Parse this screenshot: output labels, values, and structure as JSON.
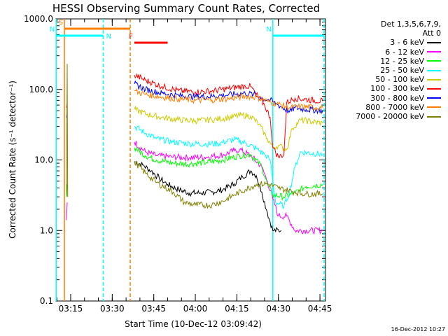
{
  "chart_data": {
    "type": "line",
    "title": "HESSI Observing Summary Count Rates, Corrected",
    "xlabel": "Start Time (10-Dec-12 03:09:42)",
    "ylabel": "Corrected Count Rate (s⁻¹ detector⁻¹)",
    "yscale": "log",
    "ylim": [
      0.1,
      1000.0
    ],
    "y_ticks": [
      "0.1",
      "1.0",
      "10.0",
      "100.0",
      "1000.0"
    ],
    "x_ticks": [
      "03:15",
      "03:30",
      "03:45",
      "04:00",
      "04:15",
      "04:30",
      "04:45"
    ],
    "legend_title": "Det 1,3,5,6,7,9, Att 0",
    "legend_title_lines": [
      "Det 1,3,5,6,7,9,",
      "Att 0"
    ],
    "legend_position": "outside-right",
    "series": [
      {
        "name": "3 - 6 keV",
        "color": "#000000",
        "segments": [
          [
            [
              "03:13:30",
              3.0
            ],
            [
              "03:13:45",
              4.5
            ]
          ],
          [
            [
              "03:38:00",
              9.5
            ],
            [
              "03:41:00",
              8.5
            ],
            [
              "03:44:00",
              7.0
            ],
            [
              "03:47:00",
              5.5
            ],
            [
              "03:50:00",
              4.5
            ],
            [
              "03:54:00",
              3.8
            ],
            [
              "03:58:00",
              3.4
            ],
            [
              "04:02:00",
              3.4
            ],
            [
              "04:06:00",
              3.5
            ],
            [
              "04:10:00",
              3.8
            ],
            [
              "04:14:00",
              4.6
            ],
            [
              "04:17:00",
              5.8
            ],
            [
              "04:20:00",
              7.0
            ],
            [
              "04:22:00",
              6.0
            ],
            [
              "04:24:00",
              3.5
            ],
            [
              "04:26:00",
              1.8
            ],
            [
              "04:28:00",
              1.0
            ],
            [
              "04:31:00",
              1.0
            ]
          ]
        ]
      },
      {
        "name": "6 - 12 keV",
        "color": "#ff00ff",
        "segments": [
          [
            [
              "03:13:30",
              1.4
            ],
            [
              "03:13:45",
              2.5
            ]
          ],
          [
            [
              "03:38:00",
              18.0
            ],
            [
              "03:42:00",
              13.0
            ],
            [
              "03:46:00",
              11.5
            ],
            [
              "03:52:00",
              11.0
            ],
            [
              "03:58:00",
              10.8
            ],
            [
              "04:04:00",
              11.0
            ],
            [
              "04:10:00",
              11.8
            ],
            [
              "04:14:00",
              13.5
            ],
            [
              "04:16:00",
              14.0
            ],
            [
              "04:20:00",
              11.5
            ],
            [
              "04:24:00",
              8.0
            ],
            [
              "04:26:00",
              5.0
            ],
            [
              "04:28:00",
              2.8
            ],
            [
              "04:30:00",
              1.6
            ],
            [
              "04:33:00",
              1.6
            ],
            [
              "04:36:00",
              1.0
            ],
            [
              "04:46:00",
              1.0
            ]
          ]
        ]
      },
      {
        "name": "12 - 25 keV",
        "color": "#00ff00",
        "segments": [
          [
            [
              "03:13:30",
              3.0
            ],
            [
              "03:13:45",
              4.5
            ]
          ],
          [
            [
              "03:38:00",
              15.0
            ],
            [
              "03:42:00",
              11.5
            ],
            [
              "03:46:00",
              10.0
            ],
            [
              "03:52:00",
              9.0
            ],
            [
              "03:58:00",
              8.8
            ],
            [
              "04:04:00",
              9.2
            ],
            [
              "04:10:00",
              10.0
            ],
            [
              "04:16:00",
              11.5
            ],
            [
              "04:20:00",
              12.0
            ],
            [
              "04:24:00",
              8.0
            ],
            [
              "04:26:00",
              4.5
            ],
            [
              "04:28:00",
              3.2
            ],
            [
              "04:32:00",
              3.0
            ],
            [
              "04:36:00",
              3.4
            ],
            [
              "04:40:00",
              4.2
            ],
            [
              "04:46:00",
              4.5
            ]
          ]
        ]
      },
      {
        "name": "25 - 50 keV",
        "color": "#00ffff",
        "segments": [
          [
            [
              "03:13:30",
              12.0
            ],
            [
              "03:13:45",
              12.0
            ]
          ],
          [
            [
              "03:38:00",
              30.0
            ],
            [
              "03:42:00",
              24.0
            ],
            [
              "03:46:00",
              20.0
            ],
            [
              "03:52:00",
              18.0
            ],
            [
              "03:58:00",
              17.0
            ],
            [
              "04:04:00",
              16.8
            ],
            [
              "04:08:00",
              17.0
            ],
            [
              "04:14:00",
              19.5
            ],
            [
              "04:18:00",
              17.5
            ],
            [
              "04:22:00",
              14.5
            ],
            [
              "04:25:00",
              12.0
            ],
            [
              "04:27:00",
              10.0
            ],
            [
              "04:29:00",
              2.5
            ],
            [
              "04:32:00",
              2.2
            ],
            [
              "04:34:00",
              3.5
            ],
            [
              "04:36:00",
              8.0
            ],
            [
              "04:38:00",
              13.0
            ],
            [
              "04:46:00",
              12.0
            ]
          ]
        ]
      },
      {
        "name": "50 - 100 keV",
        "color": "#cccc00",
        "segments": [
          [
            [
              "03:38:00",
              52.0
            ],
            [
              "03:42:00",
              45.0
            ],
            [
              "03:48:00",
              40.0
            ],
            [
              "03:54:00",
              37.0
            ],
            [
              "04:00:00",
              36.0
            ],
            [
              "04:06:00",
              37.0
            ],
            [
              "04:12:00",
              40.0
            ],
            [
              "04:17:00",
              43.0
            ],
            [
              "04:20:00",
              42.0
            ],
            [
              "04:23:00",
              32.0
            ],
            [
              "04:26:00",
              20.0
            ],
            [
              "04:28:00",
              15.0
            ],
            [
              "04:30:00",
              16.0
            ],
            [
              "04:33:00",
              14.0
            ],
            [
              "04:35:00",
              28.0
            ],
            [
              "04:38:00",
              37.0
            ],
            [
              "04:46:00",
              33.0
            ]
          ]
        ]
      },
      {
        "name": "100 - 300 keV",
        "color": "#ff0000",
        "segments": [
          [
            [
              "03:13:30",
              55.0
            ],
            [
              "03:13:45",
              65.0
            ]
          ],
          [
            [
              "03:38:00",
              160.0
            ],
            [
              "03:42:00",
              135.0
            ],
            [
              "03:48:00",
              110.0
            ],
            [
              "03:54:00",
              96.0
            ],
            [
              "04:00:00",
              92.0
            ],
            [
              "04:06:00",
              95.0
            ],
            [
              "04:12:00",
              103.0
            ],
            [
              "04:18:00",
              112.0
            ],
            [
              "04:20:00",
              110.0
            ],
            [
              "04:22:00",
              85.0
            ],
            [
              "04:25:00",
              60.0
            ],
            [
              "04:27:00",
              40.0
            ],
            [
              "04:28:00",
              15.0
            ],
            [
              "04:30:00",
              11.0
            ],
            [
              "04:32:00",
              12.0
            ],
            [
              "04:33:00",
              65.0
            ],
            [
              "04:36:00",
              75.0
            ],
            [
              "04:46:00",
              68.0
            ]
          ]
        ]
      },
      {
        "name": "300 - 800 keV",
        "color": "#0000ff",
        "segments": [
          [
            [
              "03:13:30",
              40.0
            ],
            [
              "03:13:45",
              48.0
            ]
          ],
          [
            [
              "03:38:00",
              120.0
            ],
            [
              "03:42:00",
              100.0
            ],
            [
              "03:48:00",
              88.0
            ],
            [
              "03:54:00",
              82.0
            ],
            [
              "04:00:00",
              79.0
            ],
            [
              "04:06:00",
              80.0
            ],
            [
              "04:12:00",
              84.0
            ],
            [
              "04:18:00",
              88.0
            ],
            [
              "04:21:00",
              85.0
            ],
            [
              "04:24:00",
              75.0
            ],
            [
              "04:27:00",
              70.0
            ],
            [
              "04:30:00",
              60.0
            ],
            [
              "04:34:00",
              48.0
            ],
            [
              "04:36:00",
              55.0
            ],
            [
              "04:40:00",
              52.0
            ],
            [
              "04:46:00",
              50.0
            ]
          ]
        ]
      },
      {
        "name": "800 - 7000 keV",
        "color": "#ff8000",
        "segments": [
          [
            [
              "03:38:00",
              95.0
            ],
            [
              "03:42:00",
              85.0
            ],
            [
              "03:48:00",
              78.0
            ],
            [
              "03:54:00",
              73.0
            ],
            [
              "04:00:00",
              70.0
            ],
            [
              "04:06:00",
              71.0
            ],
            [
              "04:12:00",
              74.0
            ],
            [
              "04:18:00",
              80.0
            ],
            [
              "04:22:00",
              78.0
            ],
            [
              "04:26:00",
              68.0
            ],
            [
              "04:30:00",
              62.0
            ],
            [
              "04:34:00",
              55.0
            ],
            [
              "04:38:00",
              57.0
            ],
            [
              "04:46:00",
              55.0
            ]
          ]
        ]
      },
      {
        "name": "7000 - 20000 keV",
        "color": "#808000",
        "segments": [
          [
            [
              "03:13:30",
              3.5
            ],
            [
              "03:13:45",
              230.0
            ],
            [
              "03:13:55",
              3.0
            ]
          ],
          [
            [
              "03:38:00",
              9.5
            ],
            [
              "03:42:00",
              6.5
            ],
            [
              "03:46:00",
              4.8
            ],
            [
              "03:52:00",
              3.5
            ],
            [
              "03:56:00",
              2.5
            ],
            [
              "04:00:00",
              2.3
            ],
            [
              "04:06:00",
              2.3
            ],
            [
              "04:10:00",
              2.6
            ],
            [
              "04:14:00",
              3.2
            ],
            [
              "04:18:00",
              3.8
            ],
            [
              "04:22:00",
              4.5
            ],
            [
              "04:26:00",
              4.6
            ],
            [
              "04:30:00",
              4.0
            ],
            [
              "04:36:00",
              3.5
            ],
            [
              "04:40:00",
              3.3
            ],
            [
              "04:46:00",
              3.3
            ]
          ]
        ]
      }
    ],
    "flag_bars": [
      {
        "label": "S",
        "color": "#ff8000",
        "start": "03:12:45",
        "end": "03:36:30",
        "level": 1.0
      },
      {
        "label": "N",
        "color": "#00ffff",
        "start": "03:09:45",
        "end": "03:26:45",
        "level": 2.0
      },
      {
        "label": "N",
        "color": "#00ffff",
        "start": "04:28:00",
        "end": "04:46:30",
        "level": 2.0
      },
      {
        "label": "F",
        "color": "#ff0000",
        "start": "03:38:00",
        "end": "03:50:00",
        "level": 3.0
      }
    ],
    "vertical_lines": [
      {
        "color": "#00ffff",
        "time": "03:09:45",
        "style": "solid"
      },
      {
        "color": "#ff8000",
        "time": "03:12:45",
        "style": "solid"
      },
      {
        "color": "#00ffff",
        "time": "03:26:45",
        "style": "dashed"
      },
      {
        "color": "#ff8000",
        "time": "03:36:30",
        "style": "dashed"
      },
      {
        "color": "#00ffff",
        "time": "04:28:00",
        "style": "solid"
      },
      {
        "color": "#00ffff",
        "time": "04:46:30",
        "style": "dashed"
      }
    ]
  },
  "footer": {
    "timestamp": "16-Dec-2012 10:27"
  }
}
